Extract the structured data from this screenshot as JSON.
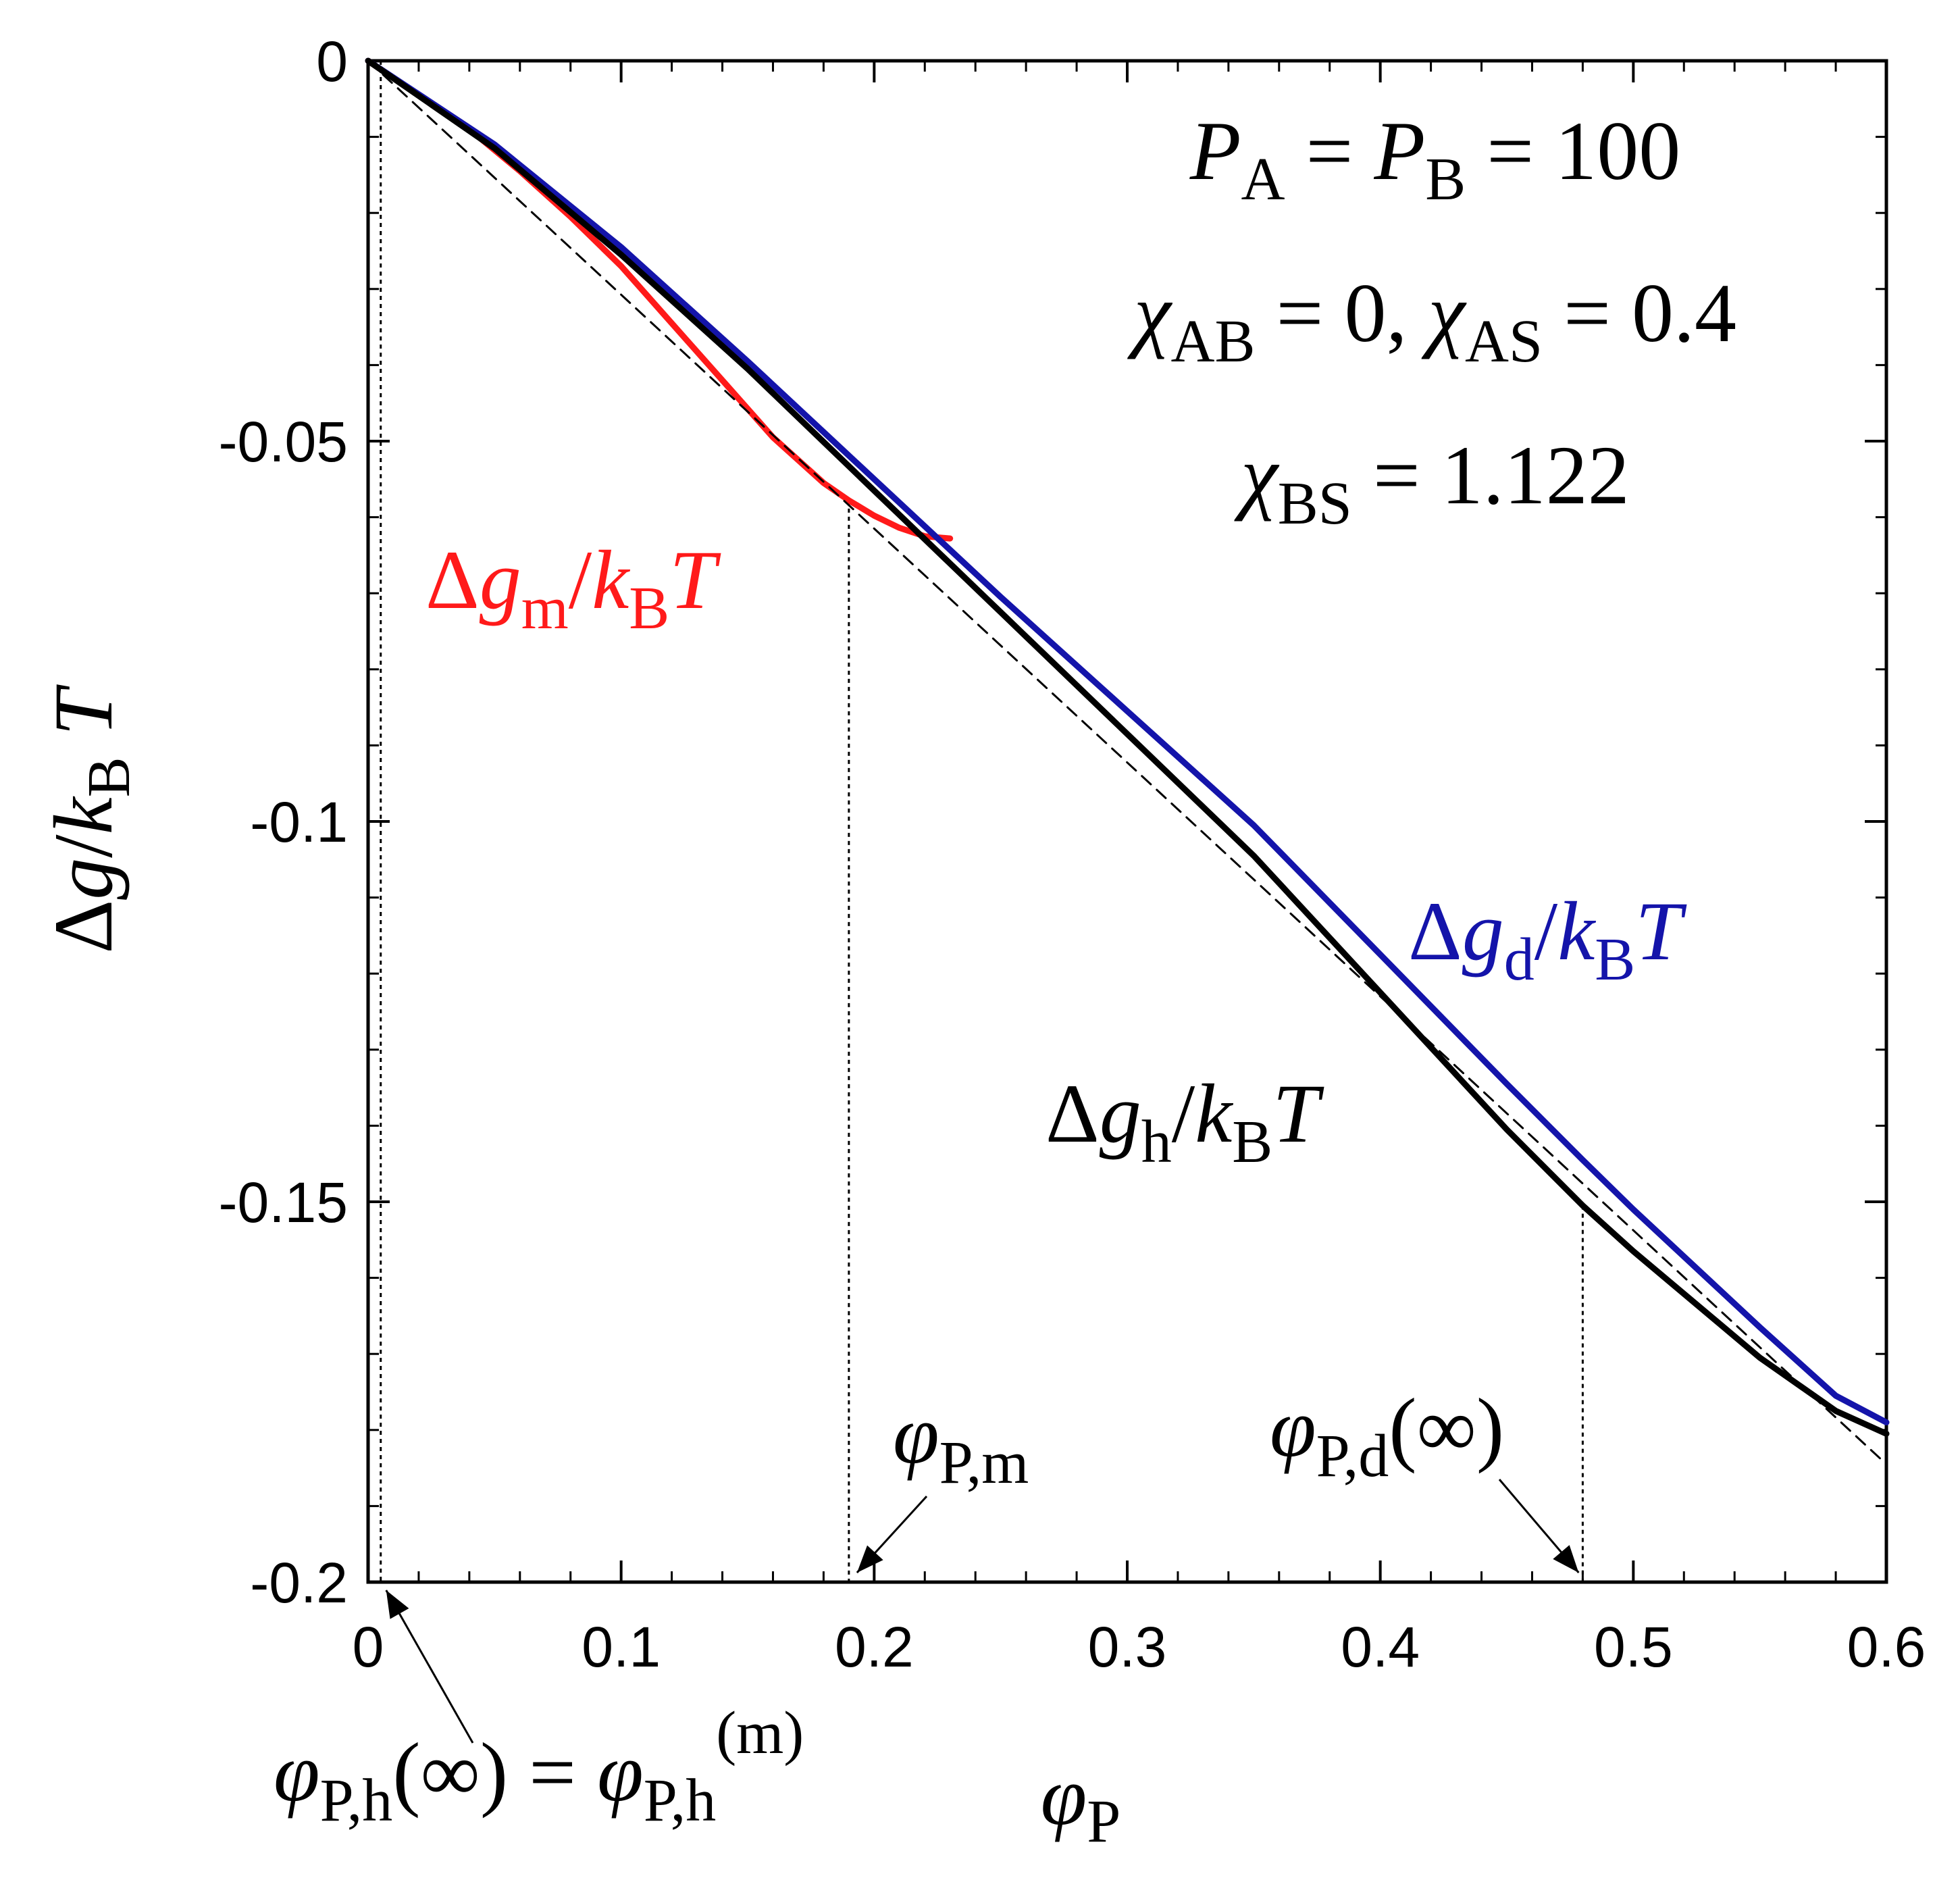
{
  "chart_data": {
    "type": "line",
    "title": "",
    "xlabel": "φP",
    "ylabel": "Δg/kBT",
    "xlim": [
      0,
      0.6
    ],
    "ylim": [
      -0.2,
      0
    ],
    "x_ticks": [
      "0",
      "0.1",
      "0.2",
      "0.3",
      "0.4",
      "0.5",
      "0.6"
    ],
    "y_ticks": [
      "0",
      "-0.05",
      "-0.1",
      "-0.15",
      "-0.2"
    ],
    "grid": false,
    "parameters": [
      "PA = PB = 100",
      "χAB = 0, χAS = 0.4",
      "χBS = 1.122"
    ],
    "series": [
      {
        "name": "Δgm/kBT",
        "color": "#ff1a1a",
        "x": [
          0,
          0.02,
          0.04,
          0.06,
          0.08,
          0.1,
          0.12,
          0.14,
          0.16,
          0.18,
          0.19,
          0.2,
          0.21,
          0.22,
          0.23
        ],
        "y": [
          0,
          -0.0045,
          -0.009,
          -0.0145,
          -0.0205,
          -0.027,
          -0.0345,
          -0.042,
          -0.0495,
          -0.0555,
          -0.0578,
          -0.0598,
          -0.0614,
          -0.0625,
          -0.0628
        ]
      },
      {
        "name": "Δgd/kBT",
        "color": "#1414aa",
        "x": [
          0,
          0.05,
          0.1,
          0.15,
          0.2,
          0.25,
          0.3,
          0.35,
          0.4,
          0.45,
          0.48,
          0.5,
          0.55,
          0.58,
          0.6
        ],
        "y": [
          0,
          -0.011,
          -0.0245,
          -0.0395,
          -0.055,
          -0.0705,
          -0.0855,
          -0.1005,
          -0.1175,
          -0.1345,
          -0.1445,
          -0.151,
          -0.1665,
          -0.1755,
          -0.179
        ]
      },
      {
        "name": "Δgh/kBT",
        "color": "#000000",
        "x": [
          0,
          0.05,
          0.1,
          0.15,
          0.2,
          0.25,
          0.3,
          0.35,
          0.4,
          0.45,
          0.48,
          0.5,
          0.55,
          0.58,
          0.6
        ],
        "y": [
          0,
          -0.0115,
          -0.0255,
          -0.0405,
          -0.0565,
          -0.0725,
          -0.0885,
          -0.1045,
          -0.1225,
          -0.1405,
          -0.1505,
          -0.1565,
          -0.1705,
          -0.1775,
          -0.1805
        ]
      },
      {
        "name": "",
        "style": "dashed",
        "color": "#000000",
        "x": [
          0,
          0.6
        ],
        "y": [
          0,
          -0.1845
        ]
      }
    ],
    "markers": [
      {
        "label_base": "φP,h(∞) = φP,h",
        "label_sup": "(m)",
        "x": 0.005
      },
      {
        "label": "φP,m",
        "x": 0.19
      },
      {
        "label": "φP,d(∞)",
        "x": 0.48
      }
    ]
  }
}
